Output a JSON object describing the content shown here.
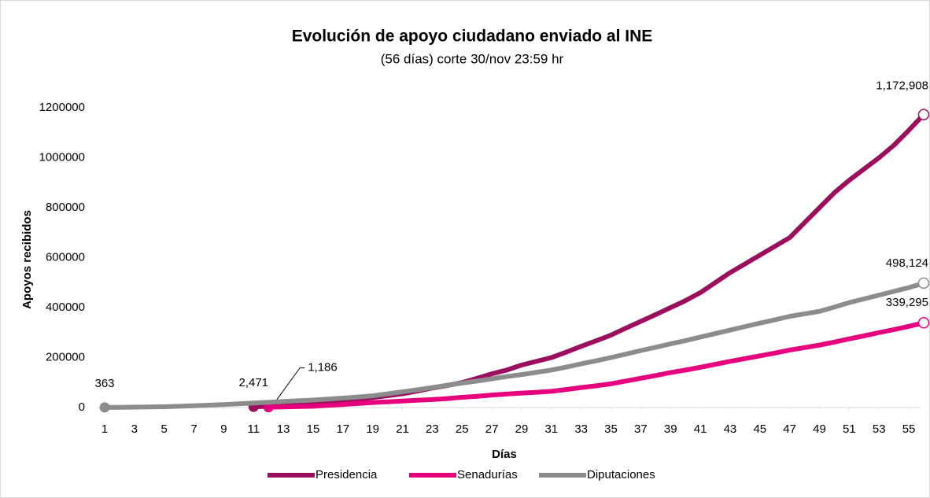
{
  "chart_data": {
    "type": "line",
    "title": "Evolución de apoyo ciudadano enviado al INE",
    "subtitle": "(56 días) corte 30/nov 23:59 hr",
    "x_label": "Días",
    "y_label": "Apoyos recibidos",
    "x": [
      1,
      2,
      3,
      4,
      5,
      6,
      7,
      8,
      9,
      10,
      11,
      12,
      13,
      14,
      15,
      16,
      17,
      18,
      19,
      20,
      21,
      22,
      23,
      24,
      25,
      26,
      27,
      28,
      29,
      30,
      31,
      32,
      33,
      34,
      35,
      36,
      37,
      38,
      39,
      40,
      41,
      42,
      43,
      44,
      45,
      46,
      47,
      48,
      49,
      50,
      51,
      52,
      53,
      54,
      55,
      56
    ],
    "xlim": [
      1,
      56
    ],
    "xticks": [
      1,
      3,
      5,
      7,
      9,
      11,
      13,
      15,
      17,
      19,
      21,
      23,
      25,
      27,
      29,
      31,
      33,
      35,
      37,
      39,
      41,
      43,
      45,
      47,
      49,
      51,
      53,
      55
    ],
    "ylim": [
      0,
      1200000
    ],
    "yticks": [
      0,
      200000,
      400000,
      600000,
      800000,
      1000000,
      1200000
    ],
    "grid": false,
    "legend": "bottom",
    "series": [
      {
        "name": "Presidencia",
        "color": "#9c0f5f",
        "values": [
          null,
          null,
          null,
          null,
          null,
          null,
          null,
          null,
          null,
          null,
          2471,
          5000,
          9000,
          13000,
          17000,
          21000,
          25000,
          32000,
          40000,
          47000,
          55000,
          66000,
          78000,
          88000,
          100000,
          117000,
          135000,
          150000,
          170000,
          185000,
          200000,
          222000,
          245000,
          267000,
          290000,
          318000,
          345000,
          372000,
          400000,
          428000,
          460000,
          500000,
          540000,
          575000,
          610000,
          645000,
          680000,
          740000,
          800000,
          860000,
          910000,
          955000,
          1000000,
          1050000,
          1110000,
          1172908
        ],
        "value_labels": [
          null,
          null,
          null,
          null,
          null,
          null,
          null,
          null,
          null,
          null,
          "2,471",
          null,
          null,
          null,
          null,
          null,
          null,
          null,
          null,
          null,
          null,
          null,
          null,
          null,
          null,
          null,
          null,
          null,
          null,
          null,
          null,
          null,
          null,
          null,
          null,
          null,
          null,
          null,
          null,
          null,
          null,
          null,
          null,
          null,
          null,
          null,
          null,
          null,
          null,
          null,
          null,
          null,
          null,
          null,
          null,
          "1,172,908"
        ]
      },
      {
        "name": "Senadurías",
        "color": "#e6007e",
        "values": [
          null,
          null,
          null,
          null,
          null,
          null,
          null,
          null,
          null,
          null,
          null,
          1186,
          2500,
          3800,
          5000,
          8500,
          12000,
          16000,
          20000,
          23000,
          26000,
          29000,
          32000,
          36000,
          41000,
          45000,
          50000,
          54000,
          58000,
          61000,
          65000,
          72000,
          80000,
          87000,
          95000,
          106000,
          117000,
          128000,
          140000,
          150000,
          161000,
          173000,
          185000,
          196000,
          207000,
          218000,
          230000,
          240000,
          250000,
          262000,
          275000,
          287000,
          300000,
          312000,
          325000,
          339295
        ],
        "value_labels": [
          null,
          null,
          null,
          null,
          null,
          null,
          null,
          null,
          null,
          null,
          null,
          "1,186",
          null,
          null,
          null,
          null,
          null,
          null,
          null,
          null,
          null,
          null,
          null,
          null,
          null,
          null,
          null,
          null,
          null,
          null,
          null,
          null,
          null,
          null,
          null,
          null,
          null,
          null,
          null,
          null,
          null,
          null,
          null,
          null,
          null,
          null,
          null,
          null,
          null,
          null,
          null,
          null,
          null,
          null,
          null,
          "339,295"
        ]
      },
      {
        "name": "Diputaciones",
        "color": "#8c8c8c",
        "values": [
          363,
          900,
          1500,
          2200,
          3000,
          5000,
          7000,
          9500,
          12000,
          15000,
          18000,
          21000,
          24000,
          27000,
          30000,
          34000,
          38000,
          42000,
          47000,
          55000,
          63000,
          71000,
          80000,
          89000,
          98000,
          106000,
          115000,
          124000,
          132000,
          141000,
          150000,
          162000,
          175000,
          187000,
          200000,
          214000,
          228000,
          241000,
          255000,
          268000,
          282000,
          296000,
          310000,
          324000,
          338000,
          351000,
          365000,
          375000,
          385000,
          402000,
          420000,
          435000,
          450000,
          465000,
          480000,
          498124
        ],
        "value_labels": [
          "363",
          null,
          null,
          null,
          null,
          null,
          null,
          null,
          null,
          null,
          null,
          null,
          null,
          null,
          null,
          null,
          null,
          null,
          null,
          null,
          null,
          null,
          null,
          null,
          null,
          null,
          null,
          null,
          null,
          null,
          null,
          null,
          null,
          null,
          null,
          null,
          null,
          null,
          null,
          null,
          null,
          null,
          null,
          null,
          null,
          null,
          null,
          null,
          null,
          null,
          null,
          null,
          null,
          null,
          null,
          "498,124"
        ]
      }
    ]
  }
}
